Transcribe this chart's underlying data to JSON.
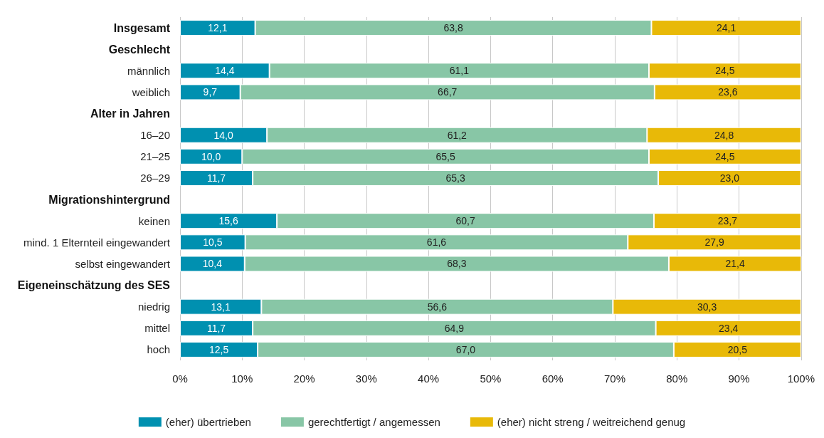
{
  "chart_data": {
    "type": "bar",
    "orientation": "horizontal",
    "stacked": true,
    "categories": [
      "Insgesamt",
      "Geschlecht",
      "männlich",
      "weiblich",
      "Alter in Jahren",
      "16–20",
      "21–25",
      "26–29",
      "Migrationshintergrund",
      "keinen",
      "mind. 1 Elternteil eingewandert",
      "selbst eingewandert",
      "Eigeneinschätzung des SES",
      "niedrig",
      "mittel",
      "hoch"
    ],
    "series": [
      {
        "name": "(eher) übertrieben",
        "color": "#0090b0",
        "values": [
          12.1,
          null,
          14.4,
          9.7,
          null,
          14.0,
          10.0,
          11.7,
          null,
          15.6,
          10.5,
          10.4,
          null,
          13.1,
          11.7,
          12.5
        ],
        "value_labels": [
          "12,1",
          null,
          "14,4",
          "9,7",
          null,
          "14,0",
          "10,0",
          "11,7",
          null,
          "15,6",
          "10,5",
          "10,4",
          null,
          "13,1",
          "11,7",
          "12,5"
        ]
      },
      {
        "name": "gerechtfertigt / angemessen",
        "color": "#88c6a6",
        "values": [
          63.8,
          null,
          61.1,
          66.7,
          null,
          61.2,
          65.5,
          65.3,
          null,
          60.7,
          61.6,
          68.3,
          null,
          56.6,
          64.9,
          67.0
        ],
        "value_labels": [
          "63,8",
          null,
          "61,1",
          "66,7",
          null,
          "61,2",
          "65,5",
          "65,3",
          null,
          "60,7",
          "61,6",
          "68,3",
          null,
          "56,6",
          "64,9",
          "67,0"
        ]
      },
      {
        "name": "(eher) nicht streng / weitreichend genug",
        "color": "#e8b908",
        "values": [
          24.1,
          null,
          24.5,
          23.6,
          null,
          24.8,
          24.5,
          23.0,
          null,
          23.7,
          27.9,
          21.4,
          null,
          30.3,
          23.4,
          20.5
        ],
        "value_labels": [
          "24,1",
          null,
          "24,5",
          "23,6",
          null,
          "24,8",
          "24,5",
          "23,0",
          null,
          "23,7",
          "27,9",
          "21,4",
          null,
          "30,3",
          "23,4",
          "20,5"
        ]
      }
    ],
    "xlim": [
      0,
      100
    ],
    "xticks": [
      {
        "value": 0,
        "label": "0%"
      },
      {
        "value": 10,
        "label": "10%"
      },
      {
        "value": 20,
        "label": "20%"
      },
      {
        "value": 30,
        "label": "30%"
      },
      {
        "value": 40,
        "label": "40%"
      },
      {
        "value": 50,
        "label": "50%"
      },
      {
        "value": 60,
        "label": "60%"
      },
      {
        "value": 70,
        "label": "70%"
      },
      {
        "value": 80,
        "label": "80%"
      },
      {
        "value": 90,
        "label": "90%"
      },
      {
        "value": 100,
        "label": "100%"
      }
    ],
    "grid": "x",
    "legend": "bottom"
  }
}
